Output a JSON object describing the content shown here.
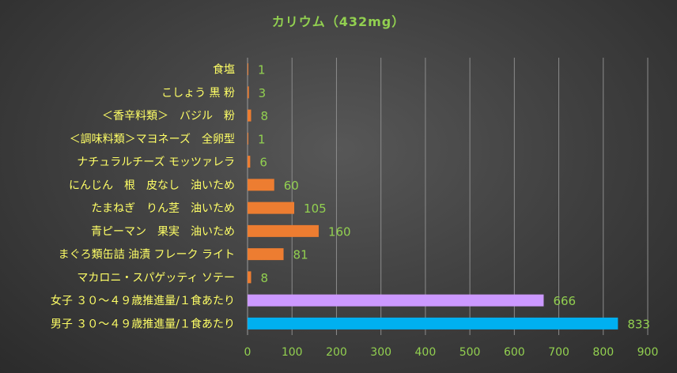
{
  "chart_data": {
    "type": "bar",
    "orientation": "horizontal",
    "title": "カリウム（432mg）",
    "categories": [
      "食塩",
      "こしょう 黒 粉",
      "＜香辛料類＞　バジル　粉",
      "＜調味料類＞マヨネーズ　全卵型",
      "ナチュラルチーズ モッツァレラ",
      "にんじん　根　皮なし　油いため",
      "たまねぎ　りん茎　油いため",
      "青ピーマン　果実　油いため",
      "まぐろ類缶詰 油漬 フレーク ライト",
      "マカロニ・スパゲッティ ソテー",
      "女子 ３０～４９歳推進量/１食あたり",
      "男子 ３０～４９歳推進量/１食あたり"
    ],
    "values": [
      1,
      3,
      8,
      1,
      6,
      60,
      105,
      160,
      81,
      8,
      666,
      833
    ],
    "value_labels": [
      "1",
      "3",
      "8",
      "1",
      "6",
      "60",
      "105",
      "160",
      "81",
      "8",
      "666",
      "833"
    ],
    "bar_colors": [
      "#ed7d31",
      "#ed7d31",
      "#ed7d31",
      "#ed7d31",
      "#ed7d31",
      "#ed7d31",
      "#ed7d31",
      "#ed7d31",
      "#ed7d31",
      "#ed7d31",
      "#cc99ff",
      "#00b0f0"
    ],
    "xlim": [
      0,
      900
    ],
    "xticks": [
      0,
      100,
      200,
      300,
      400,
      500,
      600,
      700,
      800,
      900
    ],
    "xtick_labels": [
      "0",
      "100",
      "200",
      "300",
      "400",
      "500",
      "600",
      "700",
      "800",
      "900"
    ],
    "grid": "vertical",
    "legend": "none",
    "colors": {
      "title": "#92d050",
      "category_label": "#ffff66",
      "value_label": "#92d050",
      "tick_label": "#92d050",
      "gridline": "#8c8c8c"
    }
  }
}
